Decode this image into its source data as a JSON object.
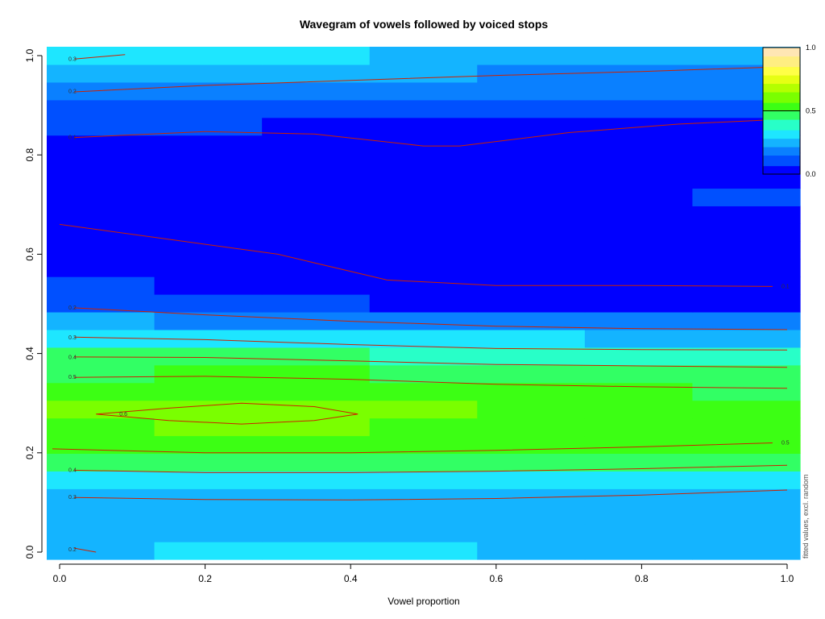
{
  "chart_data": {
    "type": "heatmap",
    "title": "Wavegram of vowels followed by voiced stops",
    "xlabel": "Vowel proportion",
    "ylabel": "",
    "side_label": "fitted values, excl. random",
    "xlim": [
      0,
      1
    ],
    "ylim": [
      0,
      1
    ],
    "x_ticks": [
      "0.0",
      "0.2",
      "0.4",
      "0.6",
      "0.8",
      "1.0"
    ],
    "y_ticks": [
      "0.0",
      "0.2",
      "0.4",
      "0.6",
      "0.8",
      "1.0"
    ],
    "zlim": [
      0,
      1
    ],
    "legend": {
      "placement": "top-right",
      "ticks": [
        "0.0",
        "0.5",
        "1.0"
      ]
    },
    "grid": false,
    "heatmap": {
      "y_bands": [
        {
          "y": 0.005,
          "v": [
            0.22,
            0.3,
            0.3,
            0.3,
            0.28,
            0.24,
            0.22
          ]
        },
        {
          "y": 0.04,
          "v": [
            0.24,
            0.27,
            0.27,
            0.27,
            0.27,
            0.24,
            0.22
          ]
        },
        {
          "y": 0.075,
          "v": [
            0.24,
            0.25,
            0.25,
            0.27,
            0.25,
            0.25,
            0.23
          ]
        },
        {
          "y": 0.11,
          "v": [
            0.27,
            0.27,
            0.27,
            0.26,
            0.25,
            0.26,
            0.26
          ]
        },
        {
          "y": 0.145,
          "v": [
            0.32,
            0.35,
            0.35,
            0.35,
            0.35,
            0.33,
            0.33
          ]
        },
        {
          "y": 0.18,
          "v": [
            0.45,
            0.46,
            0.46,
            0.46,
            0.46,
            0.45,
            0.44
          ]
        },
        {
          "y": 0.215,
          "v": [
            0.51,
            0.52,
            0.52,
            0.52,
            0.51,
            0.5,
            0.5
          ]
        },
        {
          "y": 0.25,
          "v": [
            0.56,
            0.58,
            0.58,
            0.56,
            0.55,
            0.53,
            0.52
          ]
        },
        {
          "y": 0.285,
          "v": [
            0.58,
            0.6,
            0.61,
            0.58,
            0.55,
            0.54,
            0.52
          ]
        },
        {
          "y": 0.32,
          "v": [
            0.54,
            0.56,
            0.56,
            0.53,
            0.51,
            0.5,
            0.49
          ]
        },
        {
          "y": 0.355,
          "v": [
            0.49,
            0.5,
            0.5,
            0.48,
            0.47,
            0.46,
            0.46
          ]
        },
        {
          "y": 0.39,
          "v": [
            0.44,
            0.44,
            0.43,
            0.42,
            0.42,
            0.41,
            0.41
          ]
        },
        {
          "y": 0.425,
          "v": [
            0.33,
            0.31,
            0.3,
            0.29,
            0.29,
            0.28,
            0.28
          ]
        },
        {
          "y": 0.46,
          "v": [
            0.22,
            0.2,
            0.18,
            0.17,
            0.16,
            0.16,
            0.16
          ]
        },
        {
          "y": 0.495,
          "v": [
            0.13,
            0.11,
            0.09,
            0.07,
            0.07,
            0.07,
            0.07
          ]
        },
        {
          "y": 0.53,
          "v": [
            0.08,
            0.07,
            0.06,
            0.05,
            0.05,
            0.05,
            0.05
          ]
        },
        {
          "y": 0.565,
          "v": [
            0.06,
            0.05,
            0.04,
            0.04,
            0.04,
            0.04,
            0.04
          ]
        },
        {
          "y": 0.6,
          "v": [
            0.05,
            0.05,
            0.04,
            0.04,
            0.04,
            0.04,
            0.04
          ]
        },
        {
          "y": 0.635,
          "v": [
            0.05,
            0.05,
            0.05,
            0.05,
            0.05,
            0.05,
            0.05
          ]
        },
        {
          "y": 0.67,
          "v": [
            0.06,
            0.06,
            0.06,
            0.06,
            0.06,
            0.07,
            0.07
          ]
        },
        {
          "y": 0.705,
          "v": [
            0.06,
            0.06,
            0.06,
            0.06,
            0.06,
            0.07,
            0.08
          ]
        },
        {
          "y": 0.74,
          "v": [
            0.06,
            0.06,
            0.06,
            0.06,
            0.06,
            0.06,
            0.07
          ]
        },
        {
          "y": 0.775,
          "v": [
            0.06,
            0.06,
            0.06,
            0.06,
            0.05,
            0.06,
            0.06
          ]
        },
        {
          "y": 0.81,
          "v": [
            0.06,
            0.06,
            0.06,
            0.06,
            0.05,
            0.05,
            0.06
          ]
        },
        {
          "y": 0.845,
          "v": [
            0.08,
            0.08,
            0.07,
            0.07,
            0.07,
            0.07,
            0.07
          ]
        },
        {
          "y": 0.88,
          "v": [
            0.11,
            0.11,
            0.1,
            0.1,
            0.1,
            0.1,
            0.1
          ]
        },
        {
          "y": 0.915,
          "v": [
            0.18,
            0.17,
            0.16,
            0.16,
            0.15,
            0.15,
            0.15
          ]
        },
        {
          "y": 0.95,
          "v": [
            0.26,
            0.24,
            0.23,
            0.22,
            0.21,
            0.21,
            0.21
          ]
        },
        {
          "y": 0.985,
          "v": [
            0.33,
            0.31,
            0.29,
            0.27,
            0.25,
            0.24,
            0.24
          ]
        }
      ],
      "x_centers": [
        0.0,
        0.17,
        0.33,
        0.5,
        0.67,
        0.83,
        1.0
      ]
    },
    "contours": [
      {
        "label": "0.2",
        "label_at": [
          0.01,
          0.005
        ],
        "points": [
          [
            0.02,
            0.008
          ],
          [
            0.05,
            0.0
          ]
        ]
      },
      {
        "label": "0.3",
        "label_at": [
          0.01,
          0.11
        ],
        "points": [
          [
            0.02,
            0.11
          ],
          [
            0.2,
            0.106
          ],
          [
            0.4,
            0.105
          ],
          [
            0.6,
            0.108
          ],
          [
            0.8,
            0.115
          ],
          [
            1.0,
            0.125
          ]
        ]
      },
      {
        "label": "0.4",
        "label_at": [
          0.01,
          0.165
        ],
        "points": [
          [
            0.02,
            0.165
          ],
          [
            0.2,
            0.16
          ],
          [
            0.4,
            0.16
          ],
          [
            0.6,
            0.163
          ],
          [
            0.8,
            0.168
          ],
          [
            1.0,
            0.175
          ]
        ]
      },
      {
        "label": "0.5",
        "label_at": [
          0.99,
          0.22
        ],
        "points": [
          [
            -0.01,
            0.208
          ],
          [
            0.2,
            0.2
          ],
          [
            0.4,
            0.2
          ],
          [
            0.6,
            0.205
          ],
          [
            0.8,
            0.212
          ],
          [
            0.98,
            0.22
          ]
        ]
      },
      {
        "label": "0.6",
        "label_at": [
          0.08,
          0.278
        ],
        "points": [
          [
            0.05,
            0.278
          ],
          [
            0.15,
            0.29
          ],
          [
            0.25,
            0.3
          ],
          [
            0.35,
            0.293
          ],
          [
            0.41,
            0.278
          ],
          [
            0.35,
            0.265
          ],
          [
            0.25,
            0.258
          ],
          [
            0.15,
            0.265
          ],
          [
            0.05,
            0.278
          ]
        ]
      },
      {
        "label": "0.5",
        "label_at": [
          0.01,
          0.352
        ],
        "points": [
          [
            0.02,
            0.352
          ],
          [
            0.2,
            0.354
          ],
          [
            0.4,
            0.348
          ],
          [
            0.6,
            0.338
          ],
          [
            0.8,
            0.333
          ],
          [
            1.0,
            0.33
          ]
        ]
      },
      {
        "label": "0.4",
        "label_at": [
          0.01,
          0.392
        ],
        "points": [
          [
            0.02,
            0.393
          ],
          [
            0.2,
            0.392
          ],
          [
            0.4,
            0.385
          ],
          [
            0.6,
            0.378
          ],
          [
            0.8,
            0.375
          ],
          [
            1.0,
            0.372
          ]
        ]
      },
      {
        "label": "0.3",
        "label_at": [
          0.01,
          0.432
        ],
        "points": [
          [
            0.02,
            0.433
          ],
          [
            0.2,
            0.428
          ],
          [
            0.4,
            0.418
          ],
          [
            0.6,
            0.41
          ],
          [
            0.8,
            0.408
          ],
          [
            1.0,
            0.407
          ]
        ]
      },
      {
        "label": "0.2",
        "label_at": [
          0.01,
          0.492
        ],
        "points": [
          [
            0.02,
            0.492
          ],
          [
            0.2,
            0.478
          ],
          [
            0.4,
            0.465
          ],
          [
            0.6,
            0.455
          ],
          [
            0.8,
            0.45
          ],
          [
            1.0,
            0.448
          ]
        ]
      },
      {
        "label": "0.1",
        "label_at": [
          0.99,
          0.535
        ],
        "points": [
          [
            0.0,
            0.66
          ],
          [
            0.15,
            0.63
          ],
          [
            0.3,
            0.6
          ],
          [
            0.45,
            0.548
          ],
          [
            0.6,
            0.537
          ],
          [
            0.8,
            0.537
          ],
          [
            0.98,
            0.535
          ]
        ]
      },
      {
        "label": "0.1",
        "label_at": [
          0.01,
          0.835
        ],
        "points": [
          [
            0.02,
            0.835
          ],
          [
            0.2,
            0.847
          ],
          [
            0.35,
            0.842
          ],
          [
            0.5,
            0.818
          ],
          [
            0.55,
            0.818
          ],
          [
            0.7,
            0.845
          ],
          [
            0.85,
            0.862
          ],
          [
            1.0,
            0.872
          ]
        ]
      },
      {
        "label": "0.2",
        "label_at": [
          0.01,
          0.928
        ],
        "points": [
          [
            0.02,
            0.927
          ],
          [
            0.2,
            0.94
          ],
          [
            0.4,
            0.95
          ],
          [
            0.6,
            0.96
          ],
          [
            0.8,
            0.968
          ],
          [
            1.0,
            0.978
          ]
        ]
      },
      {
        "label": "0.3",
        "label_at": [
          0.01,
          0.993
        ],
        "points": [
          [
            0.02,
            0.993
          ],
          [
            0.09,
            1.002
          ]
        ]
      }
    ],
    "colors": {
      "contour": "#cc2200",
      "palette": [
        "#0000ff",
        "#0050ff",
        "#0a80ff",
        "#14b4ff",
        "#1ee6ff",
        "#28ffc8",
        "#32ff64",
        "#3cff14",
        "#7aff00",
        "#b4ff00",
        "#e6ff14",
        "#ffff46",
        "#ffee82",
        "#ffe6b4"
      ]
    }
  }
}
